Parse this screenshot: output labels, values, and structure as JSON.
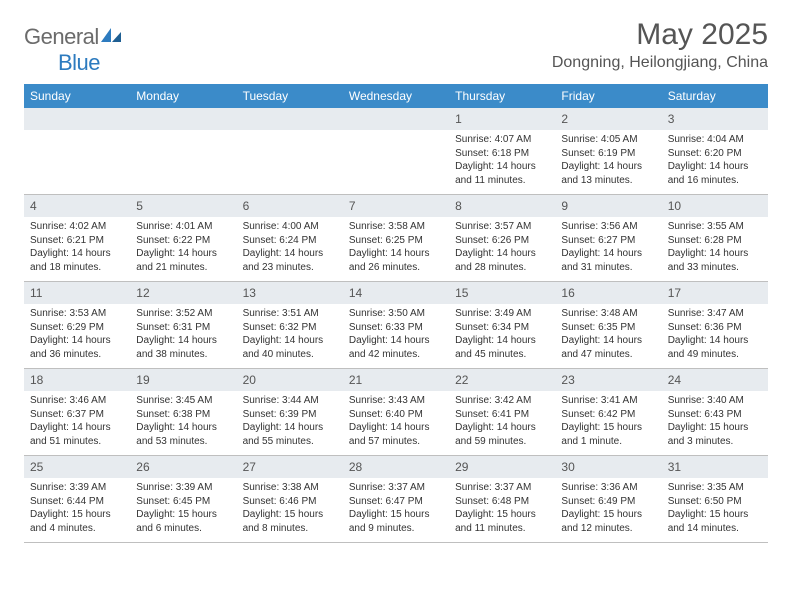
{
  "logo": {
    "textA": "General",
    "textB": "Blue"
  },
  "title": "May 2025",
  "location": "Dongning, Heilongjiang, China",
  "colors": {
    "header_bar": "#3b8bc9",
    "day_header_bg": "#e7ebef",
    "border": "#bfbfbf",
    "text": "#333333",
    "title_text": "#555555"
  },
  "weekdays": [
    "Sunday",
    "Monday",
    "Tuesday",
    "Wednesday",
    "Thursday",
    "Friday",
    "Saturday"
  ],
  "weeks": [
    [
      {
        "n": "",
        "sunrise": "",
        "sunset": "",
        "daylight": ""
      },
      {
        "n": "",
        "sunrise": "",
        "sunset": "",
        "daylight": ""
      },
      {
        "n": "",
        "sunrise": "",
        "sunset": "",
        "daylight": ""
      },
      {
        "n": "",
        "sunrise": "",
        "sunset": "",
        "daylight": ""
      },
      {
        "n": "1",
        "sunrise": "Sunrise: 4:07 AM",
        "sunset": "Sunset: 6:18 PM",
        "daylight": "Daylight: 14 hours and 11 minutes."
      },
      {
        "n": "2",
        "sunrise": "Sunrise: 4:05 AM",
        "sunset": "Sunset: 6:19 PM",
        "daylight": "Daylight: 14 hours and 13 minutes."
      },
      {
        "n": "3",
        "sunrise": "Sunrise: 4:04 AM",
        "sunset": "Sunset: 6:20 PM",
        "daylight": "Daylight: 14 hours and 16 minutes."
      }
    ],
    [
      {
        "n": "4",
        "sunrise": "Sunrise: 4:02 AM",
        "sunset": "Sunset: 6:21 PM",
        "daylight": "Daylight: 14 hours and 18 minutes."
      },
      {
        "n": "5",
        "sunrise": "Sunrise: 4:01 AM",
        "sunset": "Sunset: 6:22 PM",
        "daylight": "Daylight: 14 hours and 21 minutes."
      },
      {
        "n": "6",
        "sunrise": "Sunrise: 4:00 AM",
        "sunset": "Sunset: 6:24 PM",
        "daylight": "Daylight: 14 hours and 23 minutes."
      },
      {
        "n": "7",
        "sunrise": "Sunrise: 3:58 AM",
        "sunset": "Sunset: 6:25 PM",
        "daylight": "Daylight: 14 hours and 26 minutes."
      },
      {
        "n": "8",
        "sunrise": "Sunrise: 3:57 AM",
        "sunset": "Sunset: 6:26 PM",
        "daylight": "Daylight: 14 hours and 28 minutes."
      },
      {
        "n": "9",
        "sunrise": "Sunrise: 3:56 AM",
        "sunset": "Sunset: 6:27 PM",
        "daylight": "Daylight: 14 hours and 31 minutes."
      },
      {
        "n": "10",
        "sunrise": "Sunrise: 3:55 AM",
        "sunset": "Sunset: 6:28 PM",
        "daylight": "Daylight: 14 hours and 33 minutes."
      }
    ],
    [
      {
        "n": "11",
        "sunrise": "Sunrise: 3:53 AM",
        "sunset": "Sunset: 6:29 PM",
        "daylight": "Daylight: 14 hours and 36 minutes."
      },
      {
        "n": "12",
        "sunrise": "Sunrise: 3:52 AM",
        "sunset": "Sunset: 6:31 PM",
        "daylight": "Daylight: 14 hours and 38 minutes."
      },
      {
        "n": "13",
        "sunrise": "Sunrise: 3:51 AM",
        "sunset": "Sunset: 6:32 PM",
        "daylight": "Daylight: 14 hours and 40 minutes."
      },
      {
        "n": "14",
        "sunrise": "Sunrise: 3:50 AM",
        "sunset": "Sunset: 6:33 PM",
        "daylight": "Daylight: 14 hours and 42 minutes."
      },
      {
        "n": "15",
        "sunrise": "Sunrise: 3:49 AM",
        "sunset": "Sunset: 6:34 PM",
        "daylight": "Daylight: 14 hours and 45 minutes."
      },
      {
        "n": "16",
        "sunrise": "Sunrise: 3:48 AM",
        "sunset": "Sunset: 6:35 PM",
        "daylight": "Daylight: 14 hours and 47 minutes."
      },
      {
        "n": "17",
        "sunrise": "Sunrise: 3:47 AM",
        "sunset": "Sunset: 6:36 PM",
        "daylight": "Daylight: 14 hours and 49 minutes."
      }
    ],
    [
      {
        "n": "18",
        "sunrise": "Sunrise: 3:46 AM",
        "sunset": "Sunset: 6:37 PM",
        "daylight": "Daylight: 14 hours and 51 minutes."
      },
      {
        "n": "19",
        "sunrise": "Sunrise: 3:45 AM",
        "sunset": "Sunset: 6:38 PM",
        "daylight": "Daylight: 14 hours and 53 minutes."
      },
      {
        "n": "20",
        "sunrise": "Sunrise: 3:44 AM",
        "sunset": "Sunset: 6:39 PM",
        "daylight": "Daylight: 14 hours and 55 minutes."
      },
      {
        "n": "21",
        "sunrise": "Sunrise: 3:43 AM",
        "sunset": "Sunset: 6:40 PM",
        "daylight": "Daylight: 14 hours and 57 minutes."
      },
      {
        "n": "22",
        "sunrise": "Sunrise: 3:42 AM",
        "sunset": "Sunset: 6:41 PM",
        "daylight": "Daylight: 14 hours and 59 minutes."
      },
      {
        "n": "23",
        "sunrise": "Sunrise: 3:41 AM",
        "sunset": "Sunset: 6:42 PM",
        "daylight": "Daylight: 15 hours and 1 minute."
      },
      {
        "n": "24",
        "sunrise": "Sunrise: 3:40 AM",
        "sunset": "Sunset: 6:43 PM",
        "daylight": "Daylight: 15 hours and 3 minutes."
      }
    ],
    [
      {
        "n": "25",
        "sunrise": "Sunrise: 3:39 AM",
        "sunset": "Sunset: 6:44 PM",
        "daylight": "Daylight: 15 hours and 4 minutes."
      },
      {
        "n": "26",
        "sunrise": "Sunrise: 3:39 AM",
        "sunset": "Sunset: 6:45 PM",
        "daylight": "Daylight: 15 hours and 6 minutes."
      },
      {
        "n": "27",
        "sunrise": "Sunrise: 3:38 AM",
        "sunset": "Sunset: 6:46 PM",
        "daylight": "Daylight: 15 hours and 8 minutes."
      },
      {
        "n": "28",
        "sunrise": "Sunrise: 3:37 AM",
        "sunset": "Sunset: 6:47 PM",
        "daylight": "Daylight: 15 hours and 9 minutes."
      },
      {
        "n": "29",
        "sunrise": "Sunrise: 3:37 AM",
        "sunset": "Sunset: 6:48 PM",
        "daylight": "Daylight: 15 hours and 11 minutes."
      },
      {
        "n": "30",
        "sunrise": "Sunrise: 3:36 AM",
        "sunset": "Sunset: 6:49 PM",
        "daylight": "Daylight: 15 hours and 12 minutes."
      },
      {
        "n": "31",
        "sunrise": "Sunrise: 3:35 AM",
        "sunset": "Sunset: 6:50 PM",
        "daylight": "Daylight: 15 hours and 14 minutes."
      }
    ]
  ]
}
